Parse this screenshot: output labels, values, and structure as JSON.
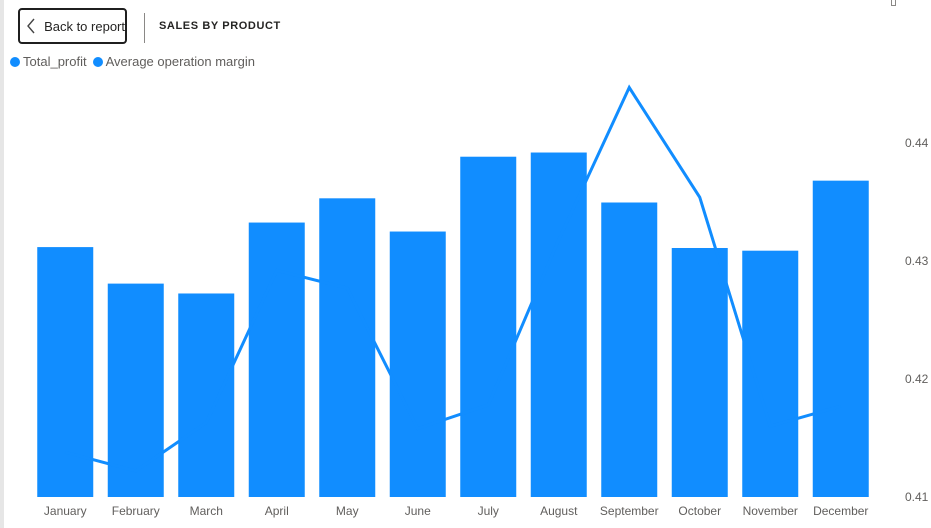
{
  "header": {
    "back_label": "Back to report",
    "title": "SALES BY PRODUCT"
  },
  "icons": {
    "back": "chevron-left-icon"
  },
  "colors": {
    "bar": "#118DFF",
    "line": "#118DFF",
    "axis_text": "#605e5c"
  },
  "chart_data": {
    "type": "bar",
    "categories": [
      "January",
      "February",
      "March",
      "April",
      "May",
      "June",
      "July",
      "August",
      "September",
      "October",
      "November",
      "December"
    ],
    "series": [
      {
        "name": "Total_profit",
        "kind": "bar",
        "values": [
          0.835,
          0.713,
          0.68,
          0.917,
          0.998,
          0.887,
          1.137,
          1.151,
          0.984,
          0.832,
          0.823,
          1.057
        ]
      },
      {
        "name": "Average operation margin",
        "kind": "line",
        "axis": "right",
        "values": [
          0.4138,
          0.4122,
          0.4163,
          0.4292,
          0.4277,
          0.4158,
          0.4178,
          0.4318,
          0.4447,
          0.4354,
          0.416,
          0.4177
        ]
      }
    ],
    "left_ylim": [
      0,
      1.4
    ],
    "right_axis": {
      "ticks": [
        0.41,
        0.42,
        0.43,
        0.44
      ],
      "tick_labels": [
        "0.41",
        "0.42",
        "0.43",
        "0.44"
      ],
      "ylim": [
        0.41,
        0.44
      ]
    },
    "legend_position": "top-left"
  }
}
